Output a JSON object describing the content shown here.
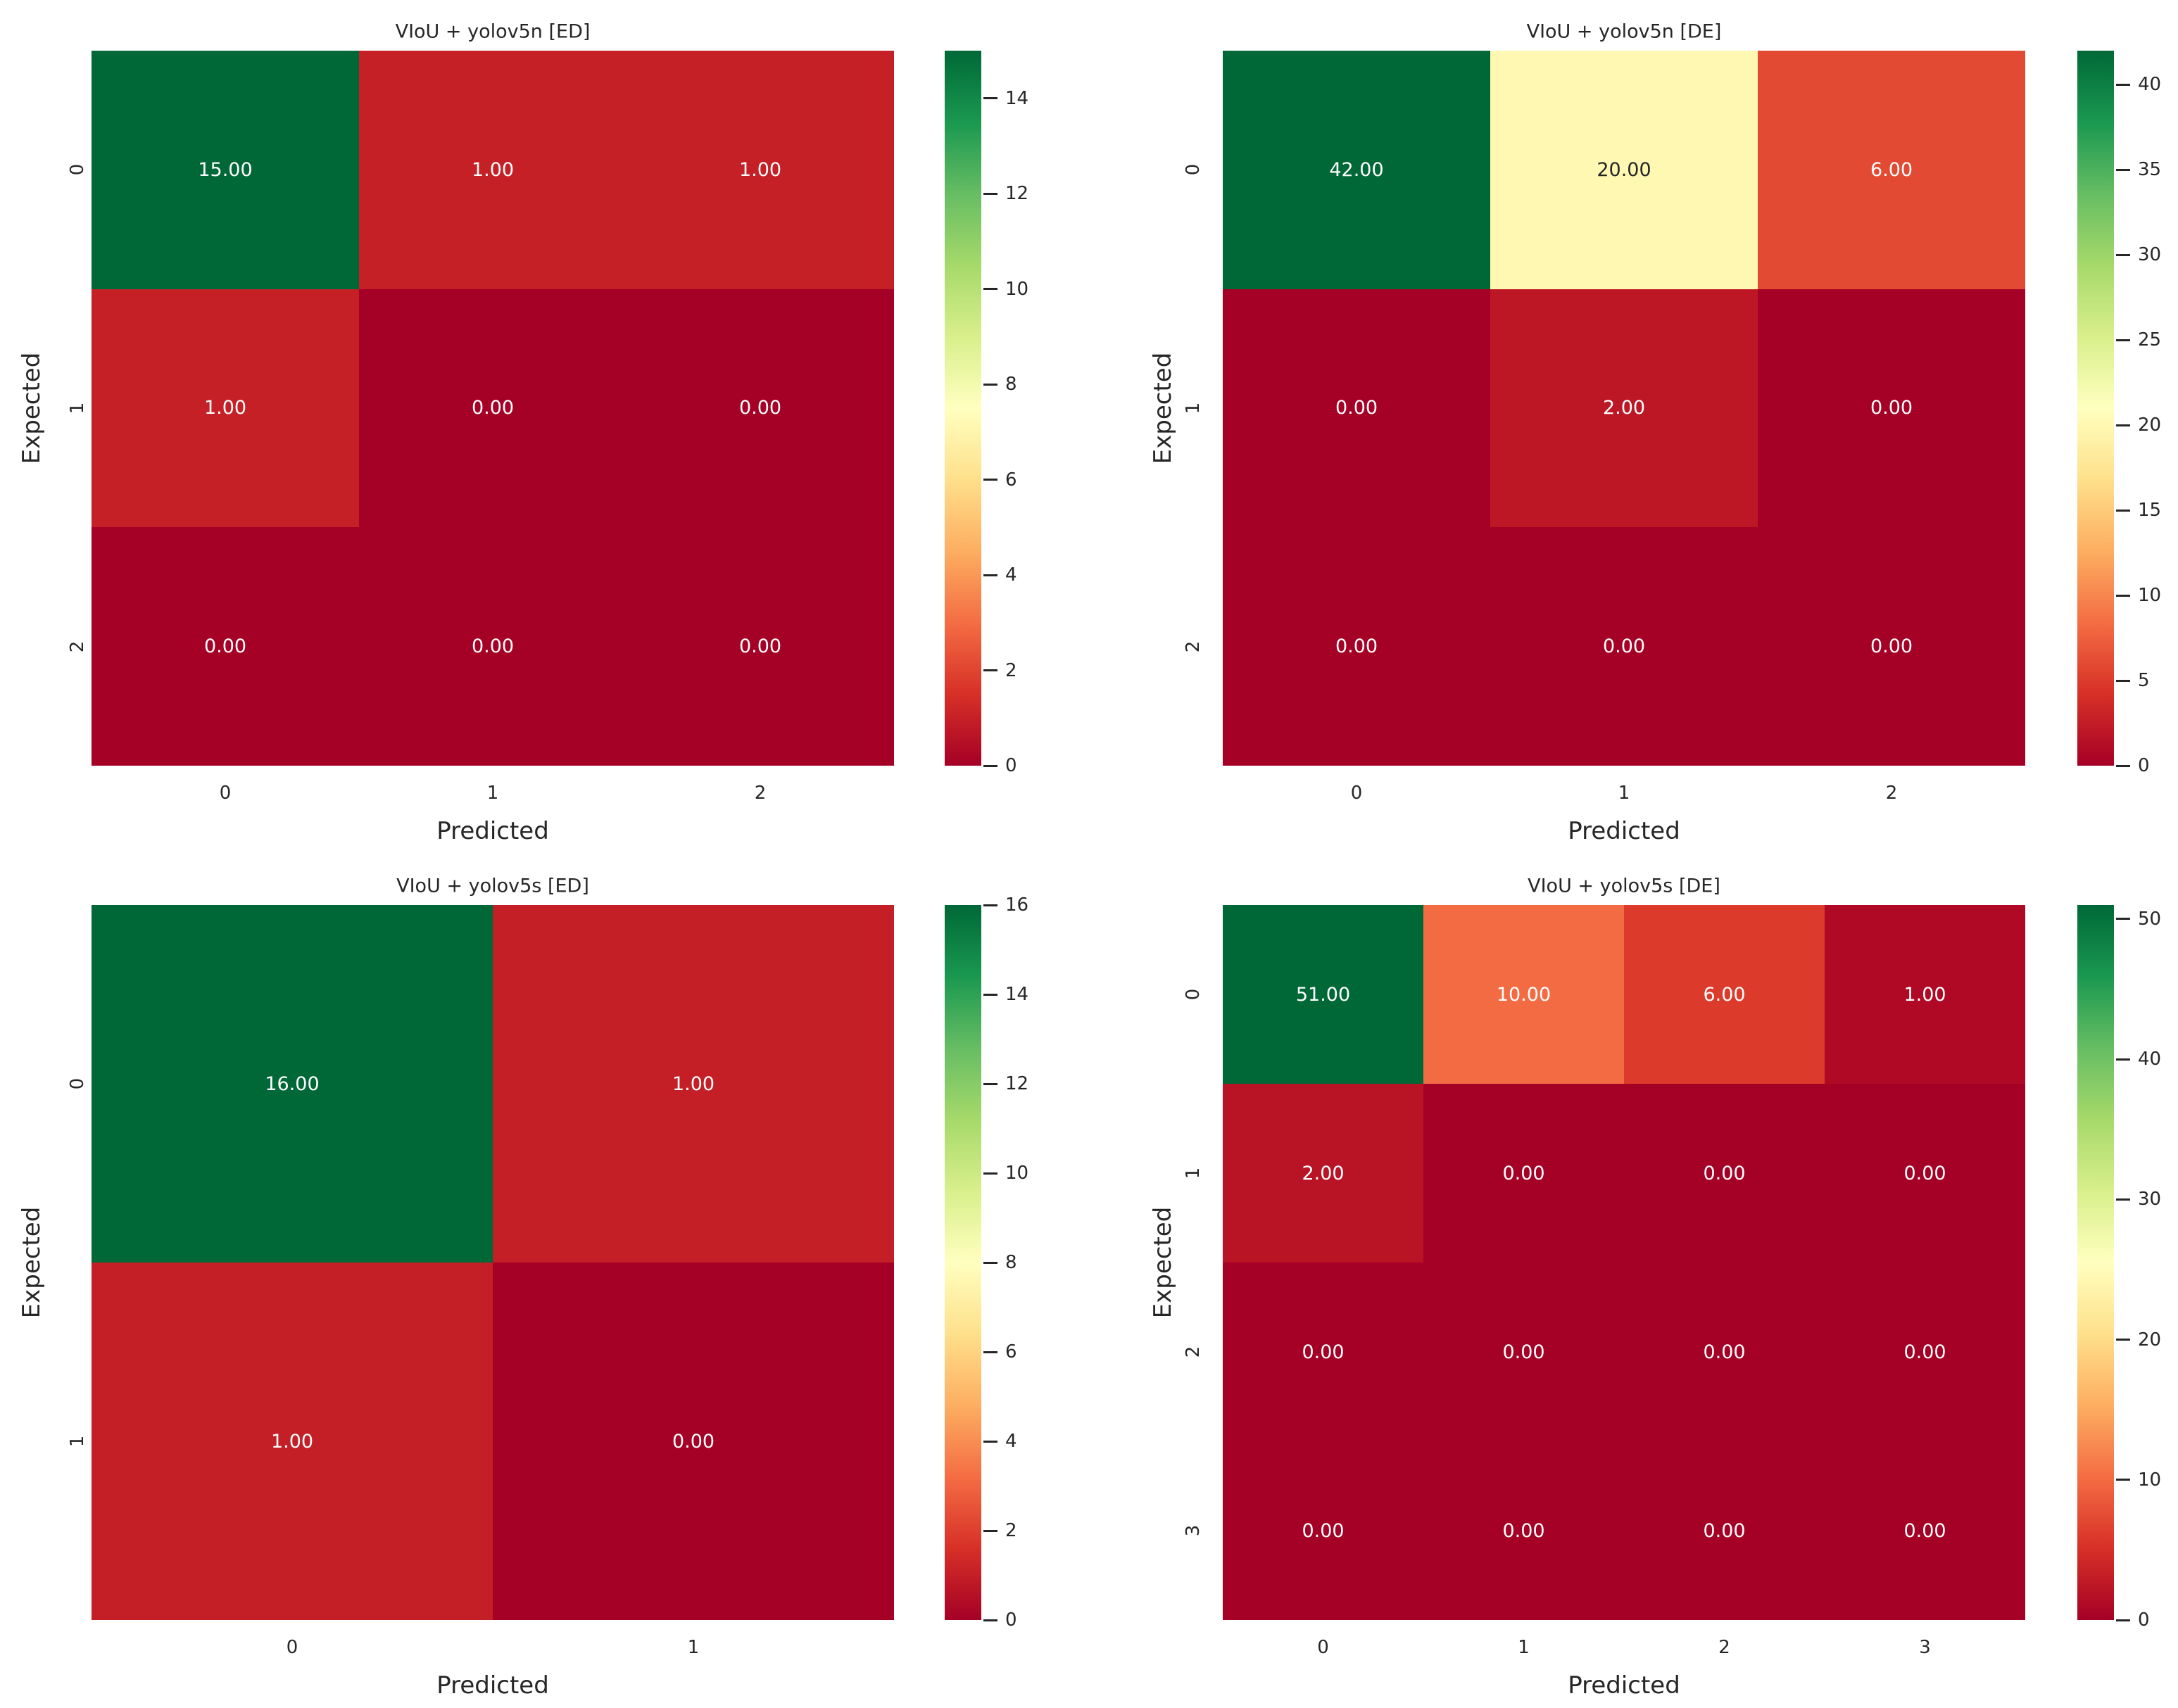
{
  "figure_background": "#ffffff",
  "text_color": "#262626",
  "annot_light_color": "#ffffff",
  "colormap_name": "RdYlGn",
  "colormap_anchors": [
    "#a50026",
    "#d73027",
    "#f46d43",
    "#fdae61",
    "#fee08b",
    "#ffffbf",
    "#d9ef8b",
    "#a6d96a",
    "#66bd63",
    "#1a9850",
    "#006837"
  ],
  "chart_data": [
    {
      "type": "heatmap",
      "title": "VIoU + yolov5n [ED]",
      "xlabel": "Predicted",
      "ylabel": "Expected",
      "x_ticklabels": [
        "0",
        "1",
        "2"
      ],
      "y_ticklabels": [
        "0",
        "1",
        "2"
      ],
      "values": [
        [
          15,
          1,
          1
        ],
        [
          1,
          0,
          0
        ],
        [
          0,
          0,
          0
        ]
      ],
      "vmin": 0,
      "vmax": 15,
      "colorbar_ticks": [
        0,
        2,
        4,
        6,
        8,
        10,
        12,
        14
      ],
      "annot": true,
      "value_format": "2dp",
      "colormap": "RdYlGn",
      "grid": false,
      "legend_position": "colorbar-right"
    },
    {
      "type": "heatmap",
      "title": "VIoU + yolov5n [DE]",
      "xlabel": "Predicted",
      "ylabel": "Expected",
      "x_ticklabels": [
        "0",
        "1",
        "2"
      ],
      "y_ticklabels": [
        "0",
        "1",
        "2"
      ],
      "values": [
        [
          42,
          20,
          6
        ],
        [
          0,
          2,
          0
        ],
        [
          0,
          0,
          0
        ]
      ],
      "vmin": 0,
      "vmax": 42,
      "colorbar_ticks": [
        0,
        5,
        10,
        15,
        20,
        25,
        30,
        35,
        40
      ],
      "annot": true,
      "value_format": "2dp",
      "colormap": "RdYlGn",
      "grid": false,
      "legend_position": "colorbar-right"
    },
    {
      "type": "heatmap",
      "title": "VIoU + yolov5s [ED]",
      "xlabel": "Predicted",
      "ylabel": "Expected",
      "x_ticklabels": [
        "0",
        "1"
      ],
      "y_ticklabels": [
        "0",
        "1"
      ],
      "values": [
        [
          16,
          1
        ],
        [
          1,
          0
        ]
      ],
      "vmin": 0,
      "vmax": 16,
      "colorbar_ticks": [
        0,
        2,
        4,
        6,
        8,
        10,
        12,
        14,
        16
      ],
      "annot": true,
      "value_format": "2dp",
      "colormap": "RdYlGn",
      "grid": false,
      "legend_position": "colorbar-right"
    },
    {
      "type": "heatmap",
      "title": "VIoU + yolov5s [DE]",
      "xlabel": "Predicted",
      "ylabel": "Expected",
      "x_ticklabels": [
        "0",
        "1",
        "2",
        "3"
      ],
      "y_ticklabels": [
        "0",
        "1",
        "2",
        "3"
      ],
      "values": [
        [
          51,
          10,
          6,
          1
        ],
        [
          2,
          0,
          0,
          0
        ],
        [
          0,
          0,
          0,
          0
        ],
        [
          0,
          0,
          0,
          0
        ]
      ],
      "vmin": 0,
      "vmax": 51,
      "colorbar_ticks": [
        0,
        10,
        20,
        30,
        40,
        50
      ],
      "annot": true,
      "value_format": "2dp",
      "colormap": "RdYlGn",
      "grid": false,
      "legend_position": "colorbar-right"
    }
  ]
}
